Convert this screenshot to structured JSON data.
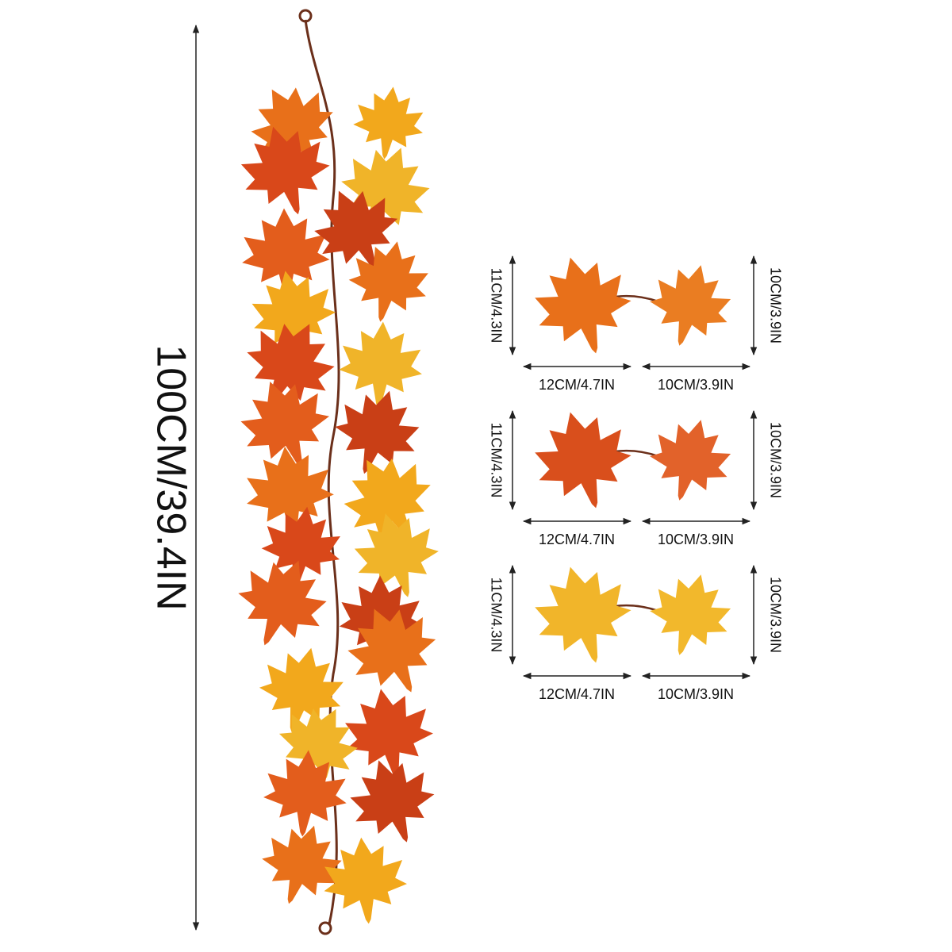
{
  "dimensions": {
    "total_length": "100CM/39.4IN",
    "rows": [
      {
        "left_height": "11CM/4.3IN",
        "left_width": "12CM/4.7IN",
        "right_width": "10CM/3.9IN",
        "right_height": "10CM/3.9IN"
      },
      {
        "left_height": "11CM/4.3IN",
        "left_width": "12CM/4.7IN",
        "right_width": "10CM/3.9IN",
        "right_height": "10CM/3.9IN"
      },
      {
        "left_height": "11CM/4.3IN",
        "left_width": "12CM/4.7IN",
        "right_width": "10CM/3.9IN",
        "right_height": "10CM/3.9IN"
      }
    ]
  }
}
